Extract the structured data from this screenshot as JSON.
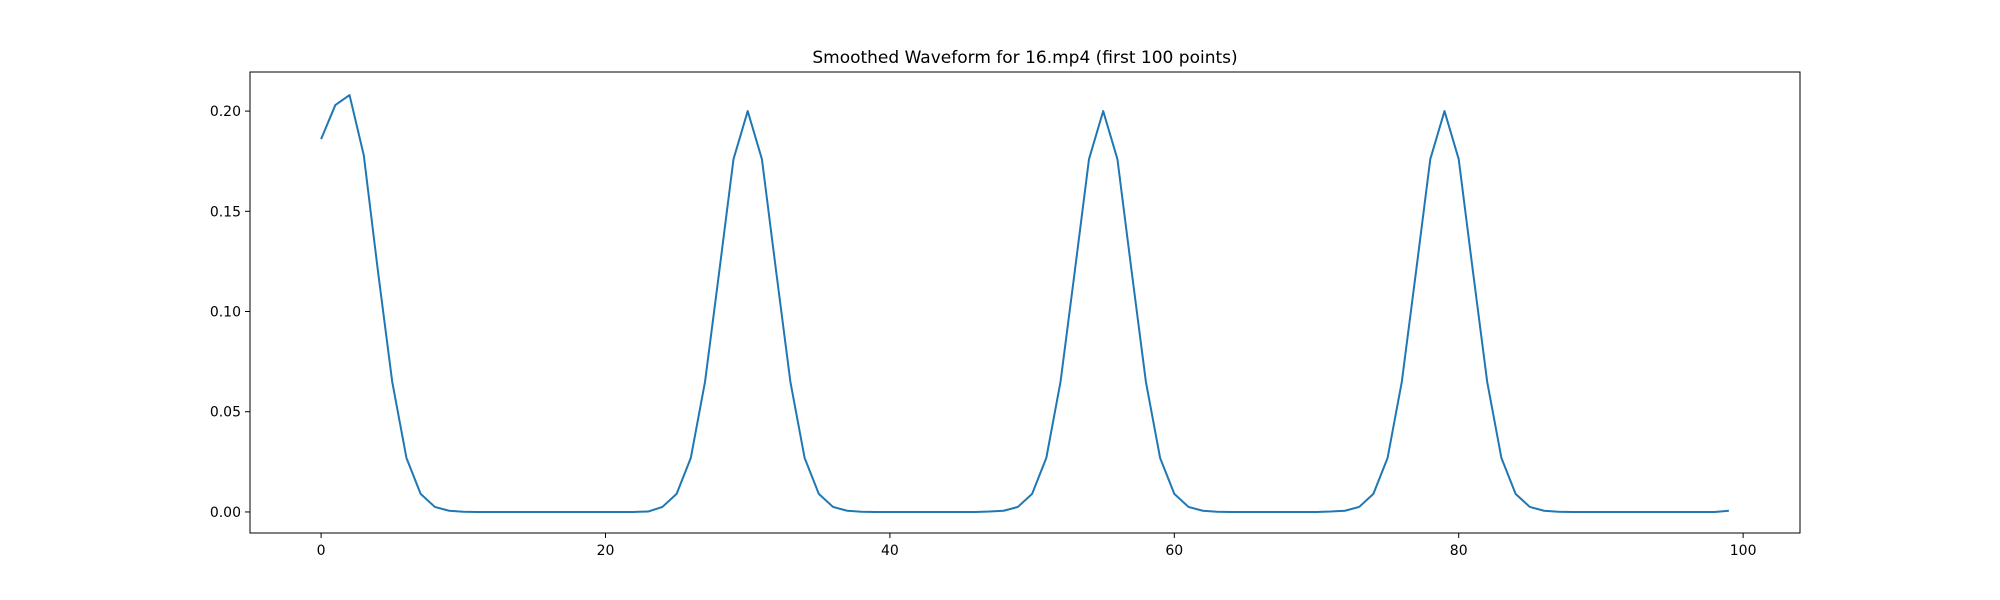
{
  "chart_data": {
    "type": "line",
    "title": "Smoothed Waveform for 16.mp4 (first 100 points)",
    "xlabel": "",
    "ylabel": "",
    "xlim": [
      -5,
      104
    ],
    "ylim": [
      -0.0105,
      0.2195
    ],
    "grid": false,
    "x_ticks": [
      0,
      20,
      40,
      60,
      80,
      100
    ],
    "x_tick_labels": [
      "0",
      "20",
      "40",
      "60",
      "80",
      "100"
    ],
    "y_ticks": [
      0.0,
      0.05,
      0.1,
      0.15,
      0.2
    ],
    "y_tick_labels": [
      "0.00",
      "0.05",
      "0.10",
      "0.15",
      "0.20"
    ],
    "series": [
      {
        "color": "#1f77b4",
        "x": [
          0,
          1,
          2,
          3,
          4,
          5,
          6,
          7,
          8,
          9,
          10,
          11,
          12,
          13,
          14,
          15,
          16,
          17,
          18,
          19,
          20,
          21,
          22,
          23,
          24,
          25,
          26,
          27,
          28,
          29,
          30,
          31,
          32,
          33,
          34,
          35,
          36,
          37,
          38,
          39,
          40,
          41,
          42,
          43,
          44,
          45,
          46,
          47,
          48,
          49,
          50,
          51,
          52,
          53,
          54,
          55,
          56,
          57,
          58,
          59,
          60,
          61,
          62,
          63,
          64,
          65,
          66,
          67,
          68,
          69,
          70,
          71,
          72,
          73,
          74,
          75,
          76,
          77,
          78,
          79,
          80,
          81,
          82,
          83,
          84,
          85,
          86,
          87,
          88,
          89,
          90,
          91,
          92,
          93,
          94,
          95,
          96,
          97,
          98,
          99
        ],
        "y": [
          0.186,
          0.203,
          0.208,
          0.178,
          0.12,
          0.065,
          0.027,
          0.009,
          0.0025,
          0.0006,
          0.0001,
          0,
          0,
          0,
          0,
          0,
          0,
          0,
          0,
          0,
          0,
          0,
          0,
          0.0002,
          0.0025,
          0.009,
          0.027,
          0.065,
          0.12,
          0.176,
          0.2,
          0.176,
          0.12,
          0.065,
          0.027,
          0.009,
          0.0025,
          0.0006,
          0.0001,
          0,
          0,
          0,
          0,
          0,
          0,
          0,
          0,
          0.0002,
          0.0006,
          0.0025,
          0.009,
          0.027,
          0.065,
          0.12,
          0.176,
          0.2,
          0.176,
          0.12,
          0.065,
          0.027,
          0.009,
          0.0025,
          0.0006,
          0.0001,
          0,
          0,
          0,
          0,
          0,
          0,
          0,
          0.0002,
          0.0006,
          0.0025,
          0.009,
          0.027,
          0.065,
          0.12,
          0.176,
          0.2,
          0.176,
          0.12,
          0.065,
          0.027,
          0.009,
          0.0025,
          0.0006,
          0.0001,
          0,
          0,
          0,
          0,
          0,
          0,
          0,
          0,
          0,
          0,
          0,
          0.0006
        ]
      }
    ]
  }
}
